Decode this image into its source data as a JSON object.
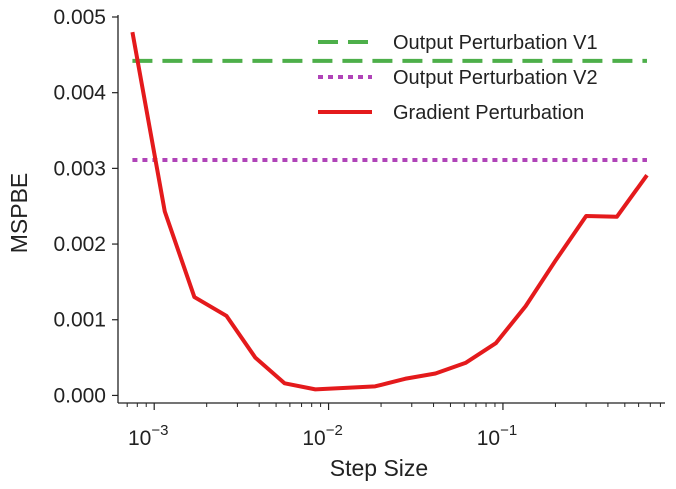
{
  "chart_data": {
    "type": "line",
    "xscale": "log",
    "xlabel": "Step Size",
    "ylabel": "MSPBE",
    "xlim": [
      0.00062,
      0.85
    ],
    "ylim": [
      -0.0001,
      0.005
    ],
    "x_ticks": [
      {
        "value": 0.001,
        "base": "10",
        "exp": "−3"
      },
      {
        "value": 0.01,
        "base": "10",
        "exp": "−2"
      },
      {
        "value": 0.1,
        "base": "10",
        "exp": "−1"
      }
    ],
    "y_ticks": [
      {
        "value": 0.0,
        "label": "0.000"
      },
      {
        "value": 0.001,
        "label": "0.001"
      },
      {
        "value": 0.002,
        "label": "0.002"
      },
      {
        "value": 0.003,
        "label": "0.003"
      },
      {
        "value": 0.004,
        "label": "0.004"
      },
      {
        "value": 0.005,
        "label": "0.005"
      }
    ],
    "legend_position": "top-right",
    "series": [
      {
        "name": "Output Perturbation V1",
        "style": "dashed",
        "color": "#4daf4a",
        "x": [
          0.00075,
          0.67
        ],
        "y": [
          0.00442,
          0.00442
        ]
      },
      {
        "name": "Output Perturbation V2",
        "style": "dotted",
        "color": "#b044b8",
        "x": [
          0.00075,
          0.67
        ],
        "y": [
          0.00311,
          0.00311
        ]
      },
      {
        "name": "Gradient Perturbation",
        "style": "solid",
        "color": "#e41a1c",
        "x": [
          0.00075,
          0.00115,
          0.0017,
          0.0026,
          0.0038,
          0.0056,
          0.0084,
          0.0125,
          0.0185,
          0.0275,
          0.041,
          0.061,
          0.091,
          0.135,
          0.2,
          0.3,
          0.45,
          0.67
        ],
        "y": [
          0.0048,
          0.00243,
          0.0013,
          0.00105,
          0.0005,
          0.00016,
          8e-05,
          0.0001,
          0.00012,
          0.00022,
          0.00029,
          0.00043,
          0.00069,
          0.00118,
          0.00178,
          0.00237,
          0.00236,
          0.00291
        ]
      }
    ]
  }
}
